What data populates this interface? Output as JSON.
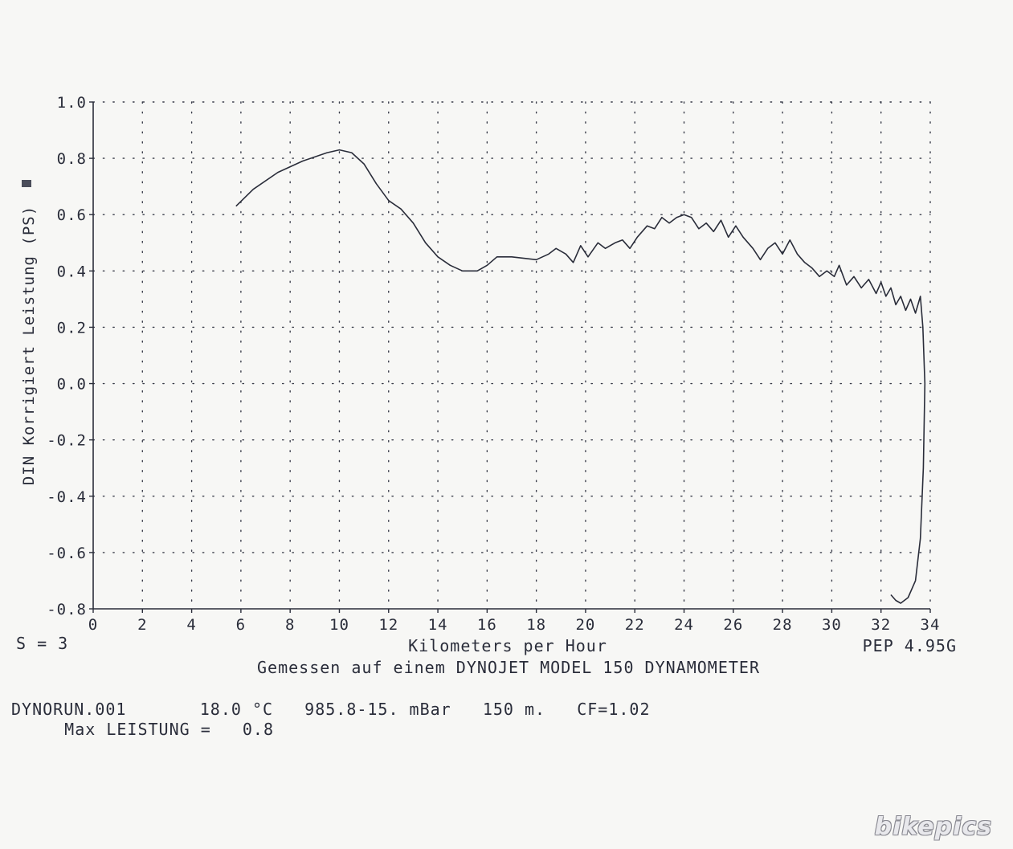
{
  "chart_data": {
    "type": "line",
    "xlabel": "Kilometers per Hour",
    "ylabel": "DIN Korrigiert Leistung (PS)",
    "xlim": [
      0,
      34
    ],
    "ylim": [
      -0.8,
      1.0
    ],
    "x_ticks": [
      "0",
      "2",
      "4",
      "6",
      "8",
      "10",
      "12",
      "14",
      "16",
      "18",
      "20",
      "22",
      "24",
      "26",
      "28",
      "30",
      "32",
      "34"
    ],
    "y_ticks": [
      "1.0",
      "0.8",
      "0.6",
      "0.4",
      "0.2",
      "0.0",
      "-0.2",
      "-0.4",
      "-0.6",
      "-0.8"
    ],
    "grid": true,
    "series": [
      {
        "values": [
          [
            5.8,
            0.63
          ],
          [
            6.5,
            0.69
          ],
          [
            7.5,
            0.75
          ],
          [
            8.5,
            0.79
          ],
          [
            9.5,
            0.82
          ],
          [
            10.0,
            0.83
          ],
          [
            10.5,
            0.82
          ],
          [
            11.0,
            0.78
          ],
          [
            11.5,
            0.71
          ],
          [
            12.0,
            0.65
          ],
          [
            12.5,
            0.62
          ],
          [
            13.0,
            0.57
          ],
          [
            13.5,
            0.5
          ],
          [
            14.0,
            0.45
          ],
          [
            14.5,
            0.42
          ],
          [
            15.0,
            0.4
          ],
          [
            15.6,
            0.4
          ],
          [
            16.0,
            0.42
          ],
          [
            16.4,
            0.45
          ],
          [
            17.0,
            0.45
          ],
          [
            17.5,
            0.445
          ],
          [
            18.0,
            0.44
          ],
          [
            18.5,
            0.46
          ],
          [
            18.8,
            0.48
          ],
          [
            19.2,
            0.46
          ],
          [
            19.5,
            0.43
          ],
          [
            19.8,
            0.49
          ],
          [
            20.1,
            0.45
          ],
          [
            20.5,
            0.5
          ],
          [
            20.8,
            0.48
          ],
          [
            21.2,
            0.5
          ],
          [
            21.5,
            0.51
          ],
          [
            21.8,
            0.48
          ],
          [
            22.1,
            0.52
          ],
          [
            22.5,
            0.56
          ],
          [
            22.8,
            0.55
          ],
          [
            23.1,
            0.59
          ],
          [
            23.4,
            0.57
          ],
          [
            23.7,
            0.59
          ],
          [
            24.0,
            0.6
          ],
          [
            24.3,
            0.59
          ],
          [
            24.6,
            0.55
          ],
          [
            24.9,
            0.57
          ],
          [
            25.2,
            0.54
          ],
          [
            25.5,
            0.58
          ],
          [
            25.8,
            0.52
          ],
          [
            26.1,
            0.56
          ],
          [
            26.4,
            0.52
          ],
          [
            26.8,
            0.48
          ],
          [
            27.1,
            0.44
          ],
          [
            27.4,
            0.48
          ],
          [
            27.7,
            0.5
          ],
          [
            28.0,
            0.46
          ],
          [
            28.3,
            0.51
          ],
          [
            28.6,
            0.46
          ],
          [
            28.9,
            0.43
          ],
          [
            29.2,
            0.41
          ],
          [
            29.5,
            0.38
          ],
          [
            29.8,
            0.4
          ],
          [
            30.1,
            0.38
          ],
          [
            30.3,
            0.42
          ],
          [
            30.6,
            0.35
          ],
          [
            30.9,
            0.38
          ],
          [
            31.2,
            0.34
          ],
          [
            31.5,
            0.37
          ],
          [
            31.8,
            0.32
          ],
          [
            32.0,
            0.36
          ],
          [
            32.2,
            0.31
          ],
          [
            32.4,
            0.34
          ],
          [
            32.6,
            0.28
          ],
          [
            32.8,
            0.31
          ],
          [
            33.0,
            0.26
          ],
          [
            33.2,
            0.3
          ],
          [
            33.4,
            0.25
          ],
          [
            33.6,
            0.31
          ],
          [
            33.7,
            0.2
          ],
          [
            33.78,
            0.0
          ],
          [
            33.72,
            -0.3
          ],
          [
            33.6,
            -0.55
          ],
          [
            33.4,
            -0.7
          ],
          [
            33.1,
            -0.76
          ],
          [
            32.8,
            -0.78
          ],
          [
            32.6,
            -0.77
          ],
          [
            32.4,
            -0.75
          ]
        ]
      }
    ]
  },
  "footer": {
    "smoothing": "S = 3",
    "version": "PEP 4.95G",
    "measured_on": "Gemessen auf einem DYNOJET MODEL 150 DYNAMOMETER",
    "run_info": "DYNORUN.001       18.0 °C   985.8-15. mBar   150 m.   CF=1.02",
    "max_line": "    Max LEISTUNG =   0.8"
  },
  "watermark": "bikepics"
}
